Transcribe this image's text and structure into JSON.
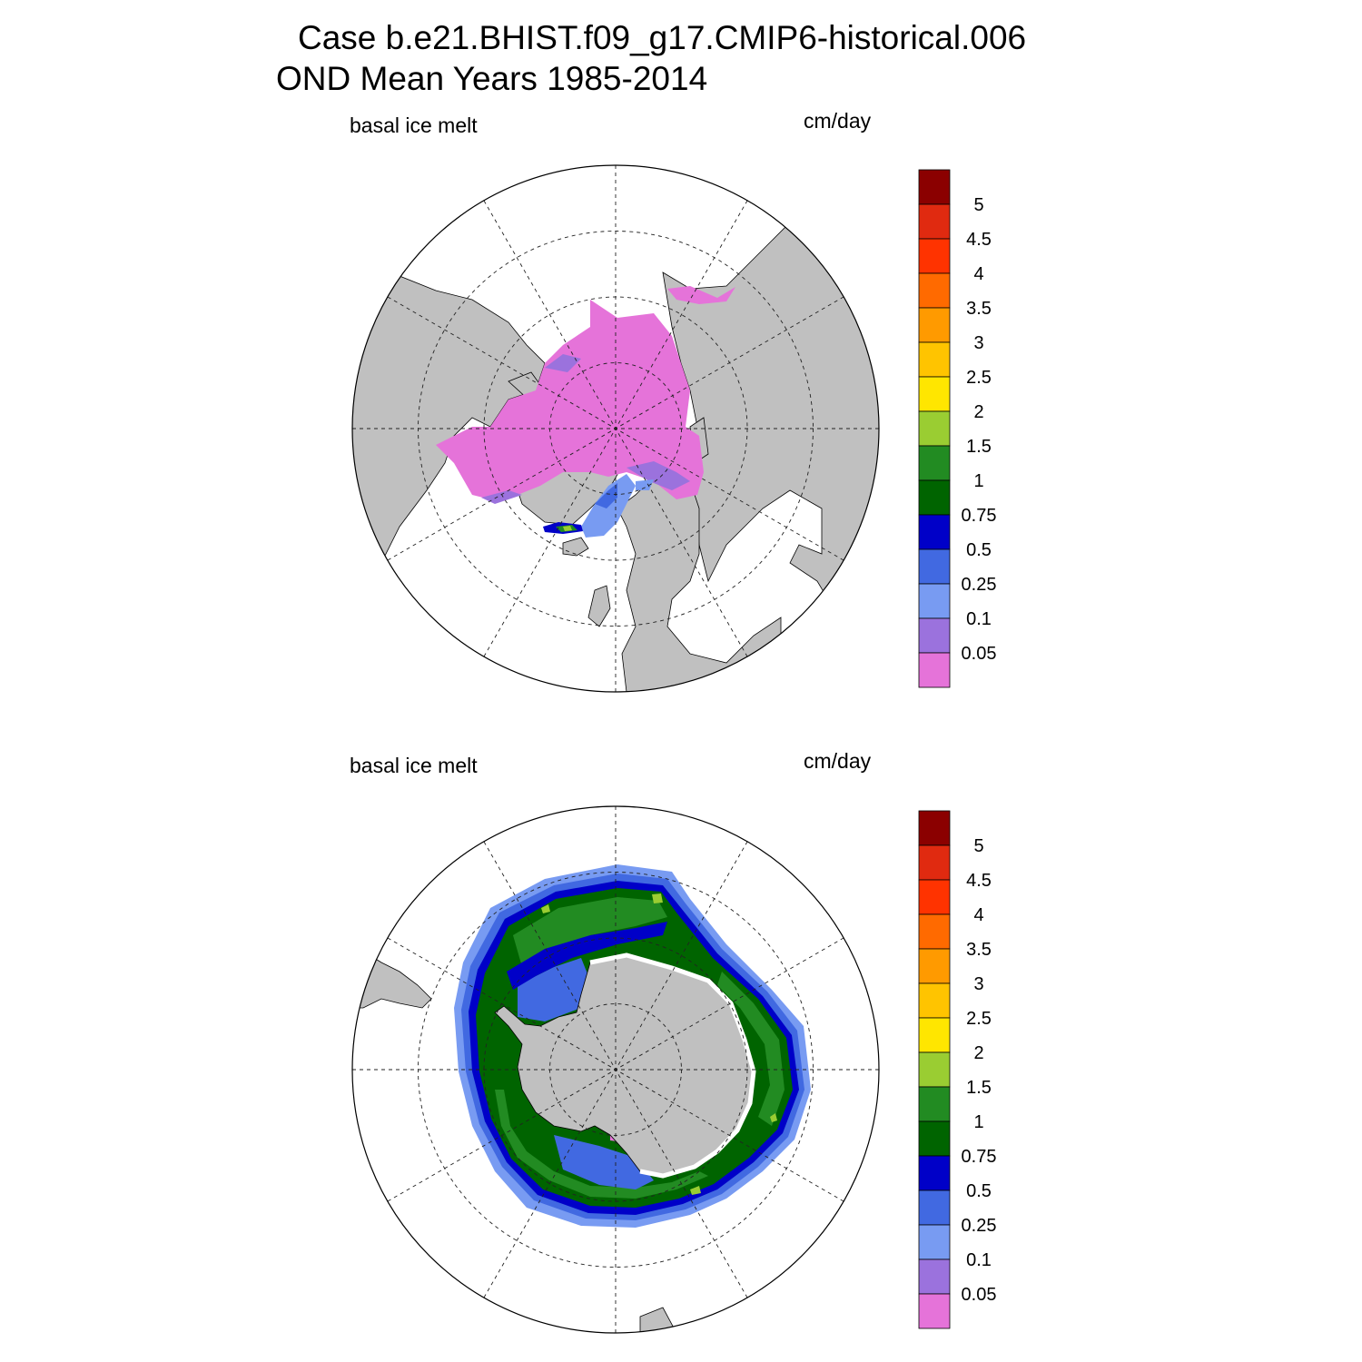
{
  "title": {
    "line1": "Case b.e21.BHIST.f09_g17.CMIP6-historical.006",
    "line2": "OND Mean   Years 1985-2014"
  },
  "colors": {
    "land": "#c0c0c0",
    "grid": "#222222",
    "palette": [
      "#e573d9",
      "#9b72dd",
      "#789bf2",
      "#4169e1",
      "#0000c8",
      "#006400",
      "#228b22",
      "#9acd32",
      "#ffe600",
      "#ffc400",
      "#ff9a00",
      "#ff6a00",
      "#ff3300",
      "#e02a10",
      "#8b0000"
    ]
  },
  "panels": [
    {
      "id": "nh",
      "left_label": "basal ice melt",
      "right_label": "cm/day",
      "hemisphere": "north",
      "colorbar": {
        "labels": [
          "5",
          "4.5",
          "4",
          "3.5",
          "3",
          "2.5",
          "2",
          "1.5",
          "1",
          "0.75",
          "0.5",
          "0.25",
          "0.1",
          "0.05"
        ]
      }
    },
    {
      "id": "sh",
      "left_label": "basal ice melt",
      "right_label": "cm/day",
      "hemisphere": "south",
      "colorbar": {
        "labels": [
          "5",
          "4.5",
          "4",
          "3.5",
          "3",
          "2.5",
          "2",
          "1.5",
          "1",
          "0.75",
          "0.5",
          "0.25",
          "0.1",
          "0.05"
        ]
      }
    }
  ]
}
